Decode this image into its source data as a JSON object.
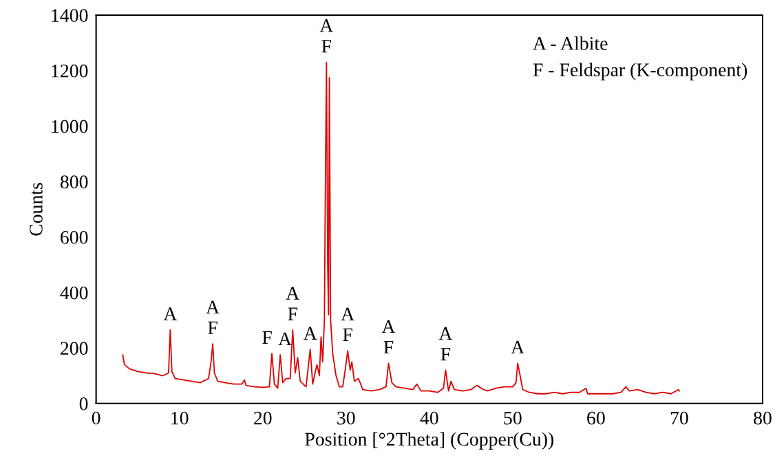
{
  "chart_data": {
    "type": "line",
    "xlabel": "Position [°2Theta] (Copper(Cu))",
    "ylabel": "Counts",
    "x": [
      3.2,
      3.4,
      4,
      5,
      6,
      7,
      8,
      8.7,
      8.9,
      9.1,
      9.5,
      10.5,
      11.5,
      12.5,
      13.5,
      13.8,
      14.0,
      14.2,
      14.6,
      15.5,
      16.5,
      17.5,
      17.8,
      18,
      19,
      20,
      20.8,
      21.1,
      21.4,
      21.8,
      22.1,
      22.4,
      22.8,
      23.3,
      23.6,
      23.9,
      24.2,
      24.5,
      25.2,
      25.7,
      26,
      26.5,
      26.8,
      27.0,
      27.2,
      27.4,
      27.5,
      27.65,
      27.8,
      27.9,
      28.0,
      28.15,
      28.4,
      28.8,
      29.2,
      29.6,
      29.9,
      30.2,
      30.5,
      30.7,
      31.0,
      31.5,
      32,
      33,
      34,
      34.8,
      35.1,
      35.5,
      36,
      37,
      38,
      38.5,
      39,
      40,
      41,
      41.7,
      41.95,
      42.3,
      42.6,
      43,
      44,
      45,
      45.7,
      46.5,
      47,
      48,
      49,
      50,
      50.4,
      50.6,
      50.9,
      51.2,
      52,
      53,
      54,
      55,
      56,
      57,
      58,
      58.8,
      59,
      60,
      61,
      62,
      63,
      63.6,
      64,
      65,
      66,
      67,
      68,
      69,
      69.9,
      70
    ],
    "series": [
      {
        "color": "#e00000",
        "values": [
          175,
          140,
          125,
          115,
          110,
          108,
          100,
          110,
          265,
          115,
          90,
          85,
          80,
          75,
          90,
          150,
          215,
          110,
          80,
          75,
          70,
          70,
          85,
          65,
          60,
          58,
          60,
          180,
          70,
          55,
          175,
          75,
          90,
          90,
          265,
          110,
          165,
          80,
          60,
          195,
          70,
          140,
          100,
          240,
          150,
          300,
          700,
          1230,
          500,
          320,
          1175,
          300,
          180,
          100,
          60,
          60,
          120,
          190,
          120,
          150,
          80,
          90,
          50,
          45,
          50,
          60,
          145,
          75,
          60,
          55,
          50,
          70,
          45,
          45,
          40,
          55,
          120,
          45,
          80,
          50,
          45,
          50,
          65,
          50,
          45,
          55,
          60,
          60,
          75,
          145,
          100,
          50,
          40,
          35,
          35,
          40,
          35,
          40,
          40,
          55,
          35,
          35,
          35,
          35,
          40,
          60,
          45,
          50,
          40,
          35,
          40,
          35,
          50,
          45
        ]
      }
    ],
    "xlim": [
      0,
      80
    ],
    "xticks": [
      0,
      10,
      20,
      30,
      40,
      50,
      60,
      70,
      80
    ],
    "ylim": [
      0,
      1400
    ],
    "yticks": [
      0,
      200,
      400,
      600,
      800,
      1000,
      1200,
      1400
    ],
    "grid": false,
    "marker": "none",
    "line_style": "solid",
    "annotations": [
      {
        "text": "A",
        "x": 8.9,
        "y": 265
      },
      {
        "text": "A\nF",
        "x": 14.0,
        "y": 215
      },
      {
        "text": "F",
        "x": 21.1,
        "y": 180
      },
      {
        "text": "A",
        "x": 22.1,
        "y": 175
      },
      {
        "text": "A\nF",
        "x": 23.6,
        "y": 265
      },
      {
        "text": "A",
        "x": 25.7,
        "y": 195
      },
      {
        "text": "A\nF",
        "x": 27.65,
        "y": 1230
      },
      {
        "text": "A\nF",
        "x": 30.2,
        "y": 190
      },
      {
        "text": "A\nF",
        "x": 35.1,
        "y": 145
      },
      {
        "text": "A\nF",
        "x": 41.95,
        "y": 120
      },
      {
        "text": "A",
        "x": 50.6,
        "y": 145
      },
      "A - Albite",
      "F - Feldspar (K-component)"
    ]
  }
}
